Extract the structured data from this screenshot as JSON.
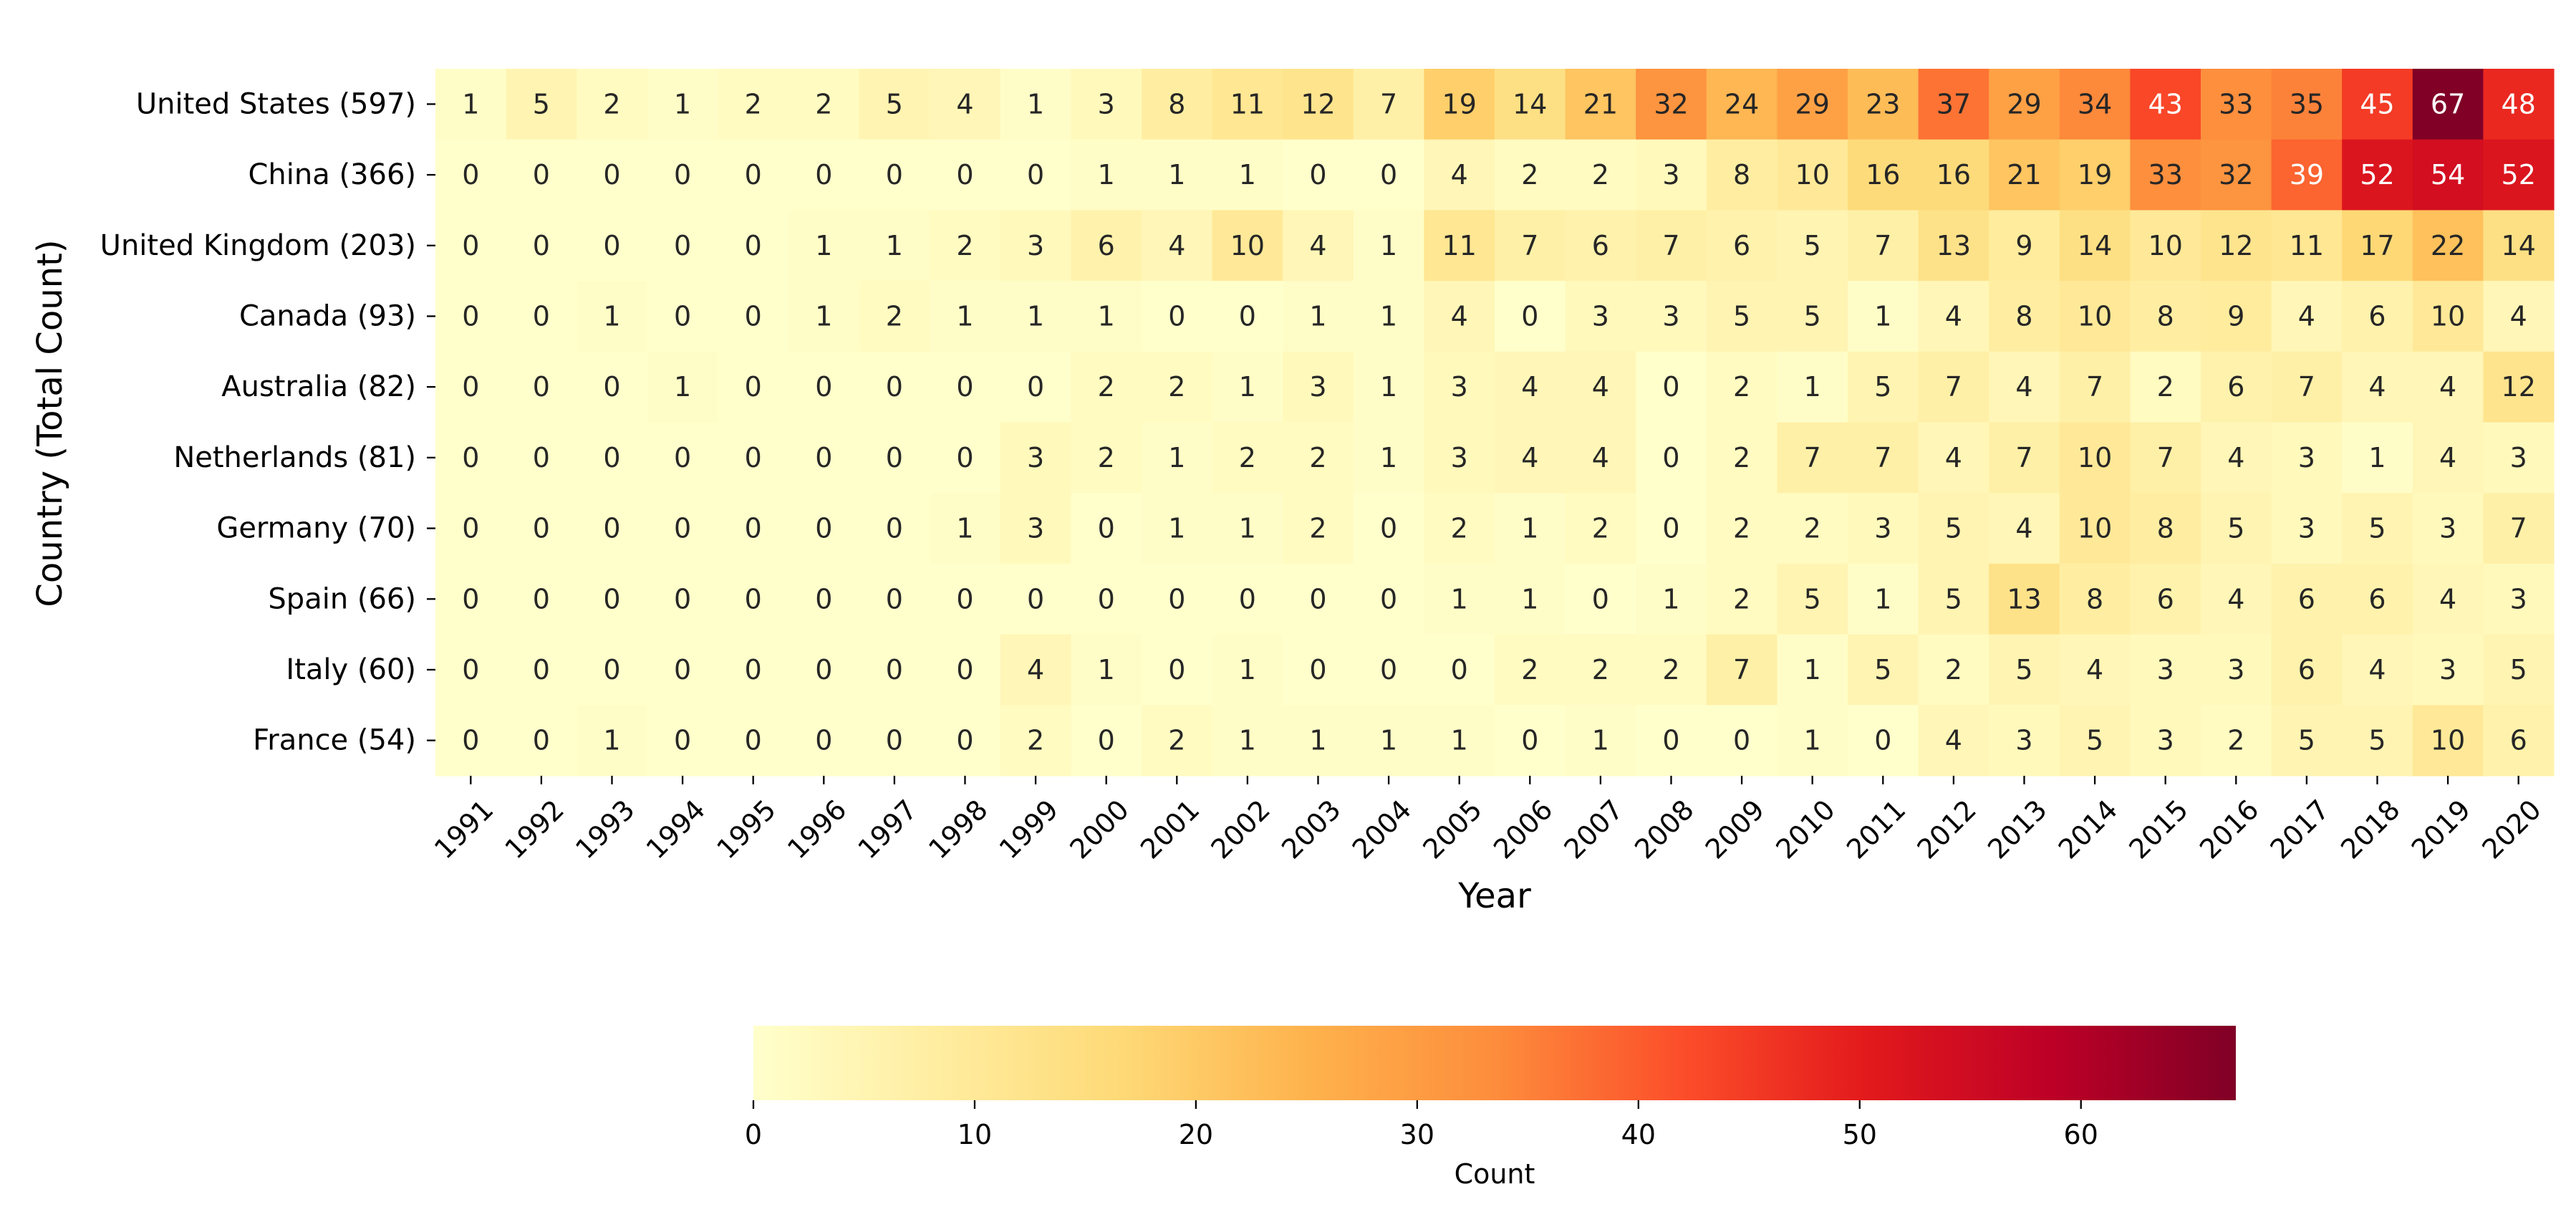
{
  "chart_data": {
    "type": "heatmap",
    "title": "",
    "xlabel": "Year",
    "ylabel": "Country (Total Count)",
    "x": [
      "1991",
      "1992",
      "1993",
      "1994",
      "1995",
      "1996",
      "1997",
      "1998",
      "1999",
      "2000",
      "2001",
      "2002",
      "2003",
      "2004",
      "2005",
      "2006",
      "2007",
      "2008",
      "2009",
      "2010",
      "2011",
      "2012",
      "2013",
      "2014",
      "2015",
      "2016",
      "2017",
      "2018",
      "2019",
      "2020"
    ],
    "y": [
      "United States (597)",
      "China (366)",
      "United Kingdom (203)",
      "Canada (93)",
      "Australia (82)",
      "Netherlands (81)",
      "Germany (70)",
      "Spain (66)",
      "Italy (60)",
      "France (54)"
    ],
    "values": [
      [
        1,
        5,
        2,
        1,
        2,
        2,
        5,
        4,
        1,
        3,
        8,
        11,
        12,
        7,
        19,
        14,
        21,
        32,
        24,
        29,
        23,
        37,
        29,
        34,
        43,
        33,
        35,
        45,
        67,
        48
      ],
      [
        0,
        0,
        0,
        0,
        0,
        0,
        0,
        0,
        0,
        1,
        1,
        1,
        0,
        0,
        4,
        2,
        2,
        3,
        8,
        10,
        16,
        16,
        21,
        19,
        33,
        32,
        39,
        52,
        54,
        52
      ],
      [
        0,
        0,
        0,
        0,
        0,
        1,
        1,
        2,
        3,
        6,
        4,
        10,
        4,
        1,
        11,
        7,
        6,
        7,
        6,
        5,
        7,
        13,
        9,
        14,
        10,
        12,
        11,
        17,
        22,
        14
      ],
      [
        0,
        0,
        1,
        0,
        0,
        1,
        2,
        1,
        1,
        1,
        0,
        0,
        1,
        1,
        4,
        0,
        3,
        3,
        5,
        5,
        1,
        4,
        8,
        10,
        8,
        9,
        4,
        6,
        10,
        4
      ],
      [
        0,
        0,
        0,
        1,
        0,
        0,
        0,
        0,
        0,
        2,
        2,
        1,
        3,
        1,
        3,
        4,
        4,
        0,
        2,
        1,
        5,
        7,
        4,
        7,
        2,
        6,
        7,
        4,
        4,
        12
      ],
      [
        0,
        0,
        0,
        0,
        0,
        0,
        0,
        0,
        3,
        2,
        1,
        2,
        2,
        1,
        3,
        4,
        4,
        0,
        2,
        7,
        7,
        4,
        7,
        10,
        7,
        4,
        3,
        1,
        4,
        3
      ],
      [
        0,
        0,
        0,
        0,
        0,
        0,
        0,
        1,
        3,
        0,
        1,
        1,
        2,
        0,
        2,
        1,
        2,
        0,
        2,
        2,
        3,
        5,
        4,
        10,
        8,
        5,
        3,
        5,
        3,
        7
      ],
      [
        0,
        0,
        0,
        0,
        0,
        0,
        0,
        0,
        0,
        0,
        0,
        0,
        0,
        0,
        1,
        1,
        0,
        1,
        2,
        5,
        1,
        5,
        13,
        8,
        6,
        4,
        6,
        6,
        4,
        3
      ],
      [
        0,
        0,
        0,
        0,
        0,
        0,
        0,
        0,
        4,
        1,
        0,
        1,
        0,
        0,
        0,
        2,
        2,
        2,
        7,
        1,
        5,
        2,
        5,
        4,
        3,
        3,
        6,
        4,
        3,
        5
      ],
      [
        0,
        0,
        1,
        0,
        0,
        0,
        0,
        0,
        2,
        0,
        2,
        1,
        1,
        1,
        1,
        0,
        1,
        0,
        0,
        1,
        0,
        4,
        3,
        5,
        3,
        2,
        5,
        5,
        10,
        6
      ]
    ],
    "colorbar": {
      "label": "Count",
      "min": 0,
      "max": 67,
      "ticks": [
        0,
        10,
        20,
        30,
        40,
        50,
        60
      ],
      "colormap": "YlOrRd",
      "orientation": "horizontal",
      "placement": "bottom"
    },
    "annotations": "cell values shown in each cell",
    "grid": false,
    "legend": "none"
  }
}
